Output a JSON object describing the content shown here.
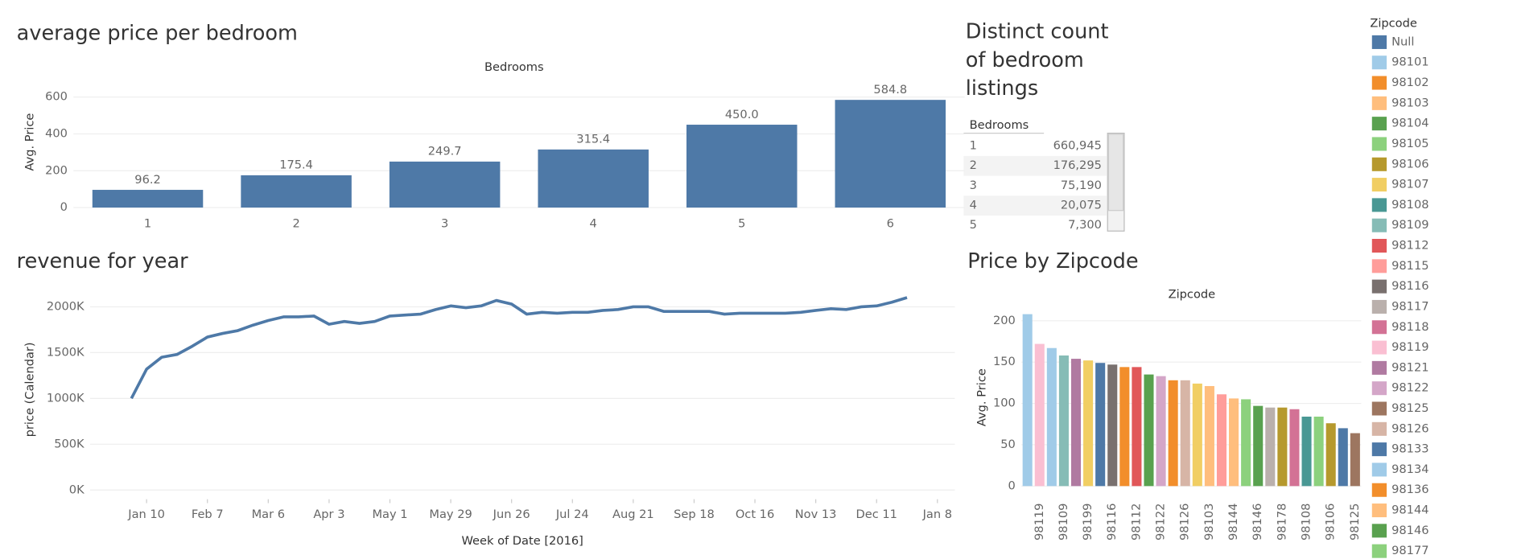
{
  "chart_data": [
    {
      "type": "bar",
      "title": "average price per bedroom",
      "header": "Bedrooms",
      "y_label": "Avg. Price",
      "categories": [
        "1",
        "2",
        "3",
        "4",
        "5",
        "6"
      ],
      "values": [
        96.2,
        175.4,
        249.7,
        315.4,
        450.0,
        584.8
      ],
      "value_labels": [
        "96.2",
        "175.4",
        "249.7",
        "315.4",
        "450.0",
        "584.8"
      ],
      "color": "#4e79a7",
      "ylim": [
        0,
        675
      ],
      "yticks": [
        0,
        200,
        400,
        600
      ],
      "grid": true
    },
    {
      "type": "line",
      "title": "revenue for year",
      "x_label": "Week of Date [2016]",
      "y_label": "price (Calendar)",
      "x": [
        "2016-01-03",
        "2016-01-10",
        "2016-01-17",
        "2016-01-24",
        "2016-01-31",
        "2016-02-07",
        "2016-02-14",
        "2016-02-21",
        "2016-02-28",
        "2016-03-06",
        "2016-03-13",
        "2016-03-20",
        "2016-03-27",
        "2016-04-03",
        "2016-04-10",
        "2016-04-17",
        "2016-04-24",
        "2016-05-01",
        "2016-05-08",
        "2016-05-15",
        "2016-05-22",
        "2016-05-29",
        "2016-06-05",
        "2016-06-12",
        "2016-06-19",
        "2016-06-26",
        "2016-07-03",
        "2016-07-10",
        "2016-07-17",
        "2016-07-24",
        "2016-07-31",
        "2016-08-07",
        "2016-08-14",
        "2016-08-21",
        "2016-08-28",
        "2016-09-04",
        "2016-09-11",
        "2016-09-18",
        "2016-09-25",
        "2016-10-02",
        "2016-10-09",
        "2016-10-16",
        "2016-10-23",
        "2016-10-30",
        "2016-11-06",
        "2016-11-13",
        "2016-11-20",
        "2016-11-27",
        "2016-12-04",
        "2016-12-11",
        "2016-12-18",
        "2016-12-25"
      ],
      "values": [
        1000000,
        1320000,
        1450000,
        1480000,
        1570000,
        1670000,
        1710000,
        1740000,
        1800000,
        1850000,
        1890000,
        1890000,
        1900000,
        1810000,
        1840000,
        1820000,
        1840000,
        1900000,
        1910000,
        1920000,
        1970000,
        2010000,
        1990000,
        2010000,
        2070000,
        2030000,
        1920000,
        1940000,
        1930000,
        1940000,
        1940000,
        1960000,
        1970000,
        2000000,
        2000000,
        1950000,
        1950000,
        1950000,
        1950000,
        1920000,
        1930000,
        1930000,
        1930000,
        1930000,
        1940000,
        1960000,
        1980000,
        1970000,
        2000000,
        2010000,
        2050000,
        2100000
      ],
      "color": "#4e79a7",
      "xlim": [
        "2015-12-15",
        "2017-01-16"
      ],
      "xticks": [
        {
          "value": "2016-01-10",
          "label": "Jan 10"
        },
        {
          "value": "2016-02-07",
          "label": "Feb 7"
        },
        {
          "value": "2016-03-06",
          "label": "Mar 6"
        },
        {
          "value": "2016-04-03",
          "label": "Apr 3"
        },
        {
          "value": "2016-05-01",
          "label": "May 1"
        },
        {
          "value": "2016-05-29",
          "label": "May 29"
        },
        {
          "value": "2016-06-26",
          "label": "Jun 26"
        },
        {
          "value": "2016-07-24",
          "label": "Jul 24"
        },
        {
          "value": "2016-08-21",
          "label": "Aug 21"
        },
        {
          "value": "2016-09-18",
          "label": "Sep 18"
        },
        {
          "value": "2016-10-16",
          "label": "Oct 16"
        },
        {
          "value": "2016-11-13",
          "label": "Nov 13"
        },
        {
          "value": "2016-12-11",
          "label": "Dec 11"
        },
        {
          "value": "2017-01-08",
          "label": "Jan 8"
        }
      ],
      "ylim": [
        -100000,
        2250000
      ],
      "yticks": [
        {
          "value": 0,
          "label": "0K"
        },
        {
          "value": 500000,
          "label": "500K"
        },
        {
          "value": 1000000,
          "label": "1000K"
        },
        {
          "value": 1500000,
          "label": "1500K"
        },
        {
          "value": 2000000,
          "label": "2000K"
        }
      ],
      "grid": true
    },
    {
      "type": "colorbar",
      "title": "Price by Zipcode",
      "header": "Zipcode",
      "y_label": "Avg. Price",
      "categories": [
        null,
        "98119",
        null,
        "98109",
        null,
        "98199",
        null,
        "98116",
        null,
        "98112",
        null,
        "98122",
        null,
        "98126",
        null,
        "98103",
        null,
        "98144",
        null,
        "98146",
        null,
        "98178",
        null,
        "98108",
        null,
        "98106",
        null,
        "98125"
      ],
      "values": [
        208,
        172,
        167,
        158,
        154,
        152,
        149,
        147,
        144,
        144,
        135,
        133,
        128,
        128,
        124,
        121,
        111,
        106,
        105,
        97,
        95,
        95,
        93,
        84,
        84,
        76,
        70,
        64
      ],
      "colors": [
        "#a0cbe8",
        "#fabfd2",
        "#a0cbe8",
        "#86bcb6",
        "#b07aa1",
        "#f1ce63",
        "#4e79a7",
        "#79706e",
        "#f28e2b",
        "#e15759",
        "#59a14f",
        "#d4a6c8",
        "#f28e2b",
        "#d7b5a6",
        "#f1ce63",
        "#ffbe7d",
        "#ff9d9a",
        "#ffbe7d",
        "#8cd17d",
        "#59a14f",
        "#bab0ac",
        "#b6992d",
        "#d37295",
        "#499894",
        "#8cd17d",
        "#b6992d",
        "#4e79a7",
        "#9d7660"
      ],
      "ylim": [
        -10,
        215
      ],
      "yticks": [
        0,
        50,
        100,
        150,
        200
      ],
      "grid": true
    }
  ],
  "table": {
    "title": "Distinct count of bedroom listings",
    "header": "Bedrooms",
    "rows": [
      [
        "1",
        "660,945"
      ],
      [
        "2",
        "176,295"
      ],
      [
        "3",
        "75,190"
      ],
      [
        "4",
        "20,075"
      ],
      [
        "5",
        "7,300"
      ]
    ]
  },
  "legend": {
    "title": "Zipcode",
    "items": [
      {
        "name": "Null",
        "color": "#4e79a7"
      },
      {
        "name": "98101",
        "color": "#a0cbe8"
      },
      {
        "name": "98102",
        "color": "#f28e2b"
      },
      {
        "name": "98103",
        "color": "#ffbe7d"
      },
      {
        "name": "98104",
        "color": "#59a14f"
      },
      {
        "name": "98105",
        "color": "#8cd17d"
      },
      {
        "name": "98106",
        "color": "#b6992d"
      },
      {
        "name": "98107",
        "color": "#f1ce63"
      },
      {
        "name": "98108",
        "color": "#499894"
      },
      {
        "name": "98109",
        "color": "#86bcb6"
      },
      {
        "name": "98112",
        "color": "#e15759"
      },
      {
        "name": "98115",
        "color": "#ff9d9a"
      },
      {
        "name": "98116",
        "color": "#79706e"
      },
      {
        "name": "98117",
        "color": "#bab0ac"
      },
      {
        "name": "98118",
        "color": "#d37295"
      },
      {
        "name": "98119",
        "color": "#fabfd2"
      },
      {
        "name": "98121",
        "color": "#b07aa1"
      },
      {
        "name": "98122",
        "color": "#d4a6c8"
      },
      {
        "name": "98125",
        "color": "#9d7660"
      },
      {
        "name": "98126",
        "color": "#d7b5a6"
      },
      {
        "name": "98133",
        "color": "#4e79a7"
      },
      {
        "name": "98134",
        "color": "#a0cbe8"
      },
      {
        "name": "98136",
        "color": "#f28e2b"
      },
      {
        "name": "98144",
        "color": "#ffbe7d"
      },
      {
        "name": "98146",
        "color": "#59a14f"
      },
      {
        "name": "98177",
        "color": "#8cd17d"
      }
    ]
  }
}
